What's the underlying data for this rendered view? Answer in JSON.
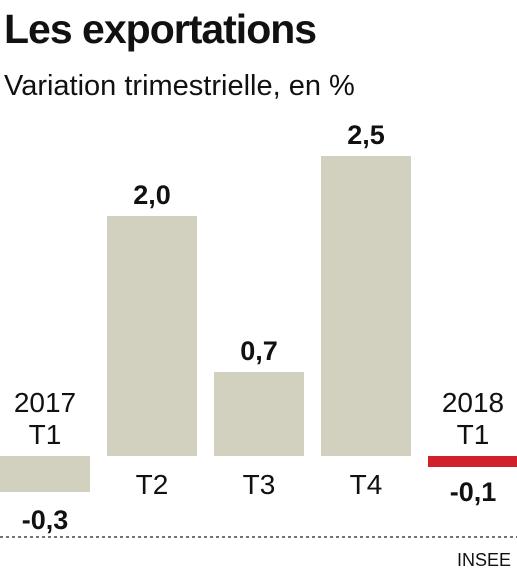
{
  "title": "Les exportations",
  "subtitle": "Variation trimestrielle, en %",
  "source": "INSEE",
  "colors": {
    "bar": "#d2d0bf",
    "negative_highlight": "#d0202a",
    "text": "#111111",
    "baseline": "#222222"
  },
  "chart_data": {
    "type": "bar",
    "categories": [
      {
        "year": "2017",
        "quarter": "T1"
      },
      {
        "year": "",
        "quarter": "T2"
      },
      {
        "year": "",
        "quarter": "T3"
      },
      {
        "year": "",
        "quarter": "T4"
      },
      {
        "year": "2018",
        "quarter": "T1"
      }
    ],
    "values": [
      -0.3,
      2.0,
      0.7,
      2.5,
      -0.1
    ],
    "value_labels": [
      "-0,3",
      "2,0",
      "0,7",
      "2,5",
      "-0,1"
    ],
    "highlight_index": 4,
    "grid": false,
    "legend": "none"
  }
}
